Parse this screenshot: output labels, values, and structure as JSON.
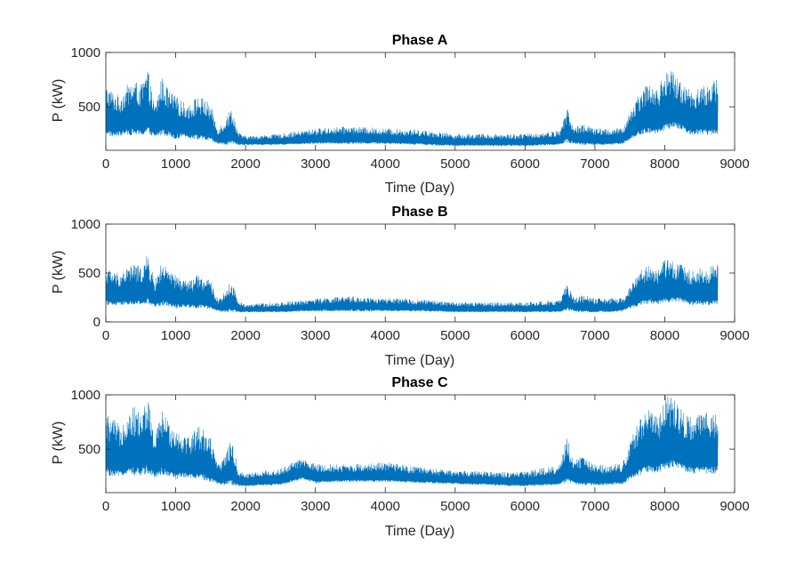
{
  "colors": {
    "series": "#0072BD",
    "axis": "#262626",
    "background": "#ffffff"
  },
  "chart_data": [
    {
      "type": "line",
      "title": "Phase A",
      "xlabel": "Time (Day)",
      "ylabel": "P (kW)",
      "xlim": [
        0,
        9000
      ],
      "ylim": [
        100,
        1000
      ],
      "xticks": [
        0,
        1000,
        2000,
        3000,
        4000,
        5000,
        6000,
        7000,
        8000,
        9000
      ],
      "yticks": [
        500,
        1000
      ],
      "grid": false,
      "series": [
        {
          "name": "Phase A",
          "x_range": [
            0,
            8760
          ],
          "envelope_x": [
            0,
            100,
            200,
            300,
            400,
            500,
            600,
            700,
            800,
            900,
            1000,
            1100,
            1200,
            1300,
            1400,
            1500,
            1600,
            1700,
            1800,
            1900,
            2000,
            2500,
            3000,
            3500,
            4000,
            4500,
            5000,
            5500,
            5800,
            6000,
            6500,
            6600,
            6700,
            6800,
            7000,
            7200,
            7400,
            7500,
            7600,
            7700,
            7800,
            7900,
            8000,
            8100,
            8200,
            8300,
            8400,
            8500,
            8600,
            8760
          ],
          "envelope_min": [
            250,
            220,
            230,
            240,
            240,
            230,
            250,
            220,
            240,
            230,
            200,
            220,
            210,
            200,
            190,
            180,
            160,
            150,
            150,
            150,
            150,
            150,
            160,
            160,
            160,
            150,
            140,
            140,
            140,
            140,
            150,
            170,
            160,
            150,
            150,
            150,
            160,
            200,
            220,
            250,
            260,
            250,
            280,
            300,
            300,
            260,
            240,
            250,
            240,
            250
          ],
          "envelope_max": [
            700,
            650,
            600,
            700,
            750,
            700,
            850,
            500,
            780,
            650,
            600,
            550,
            520,
            600,
            580,
            520,
            300,
            380,
            500,
            260,
            230,
            250,
            300,
            320,
            300,
            290,
            250,
            250,
            250,
            250,
            280,
            500,
            300,
            350,
            300,
            300,
            300,
            450,
            600,
            700,
            720,
            650,
            850,
            830,
            750,
            700,
            650,
            700,
            700,
            760
          ]
        }
      ]
    },
    {
      "type": "line",
      "title": "Phase B",
      "xlabel": "Time (Day)",
      "ylabel": "P (kW)",
      "xlim": [
        0,
        9000
      ],
      "ylim": [
        0,
        1000
      ],
      "xticks": [
        0,
        1000,
        2000,
        3000,
        4000,
        5000,
        6000,
        7000,
        8000,
        9000
      ],
      "yticks": [
        0,
        500,
        1000
      ],
      "grid": false,
      "series": [
        {
          "name": "Phase B",
          "x_range": [
            0,
            8760
          ],
          "envelope_x": [
            0,
            100,
            200,
            300,
            400,
            500,
            600,
            700,
            800,
            900,
            1000,
            1100,
            1200,
            1300,
            1400,
            1500,
            1600,
            1700,
            1800,
            1900,
            2000,
            2500,
            3000,
            3500,
            4000,
            4500,
            5000,
            5500,
            5800,
            6000,
            6500,
            6600,
            6700,
            6800,
            7000,
            7200,
            7400,
            7500,
            7600,
            7700,
            7800,
            7900,
            8000,
            8100,
            8200,
            8300,
            8400,
            8500,
            8600,
            8760
          ],
          "envelope_min": [
            180,
            160,
            170,
            170,
            170,
            170,
            180,
            150,
            170,
            160,
            140,
            150,
            150,
            140,
            140,
            130,
            110,
            100,
            100,
            100,
            100,
            100,
            110,
            110,
            110,
            110,
            100,
            100,
            100,
            100,
            100,
            120,
            110,
            100,
            100,
            100,
            110,
            140,
            160,
            180,
            190,
            180,
            200,
            210,
            210,
            190,
            170,
            180,
            170,
            180
          ],
          "envelope_max": [
            560,
            520,
            500,
            560,
            600,
            560,
            690,
            420,
            620,
            520,
            480,
            440,
            420,
            480,
            460,
            420,
            240,
            300,
            430,
            210,
            180,
            200,
            240,
            260,
            240,
            230,
            200,
            200,
            200,
            200,
            220,
            400,
            240,
            280,
            240,
            240,
            240,
            360,
            480,
            560,
            600,
            520,
            650,
            640,
            600,
            560,
            520,
            560,
            560,
            600
          ]
        }
      ]
    },
    {
      "type": "line",
      "title": "Phase C",
      "xlabel": "Time (Day)",
      "ylabel": "P (kW)",
      "xlim": [
        0,
        9000
      ],
      "ylim": [
        100,
        1000
      ],
      "xticks": [
        0,
        1000,
        2000,
        3000,
        4000,
        5000,
        6000,
        7000,
        8000,
        9000
      ],
      "yticks": [
        500,
        1000
      ],
      "grid": false,
      "series": [
        {
          "name": "Phase C",
          "x_range": [
            0,
            8760
          ],
          "envelope_x": [
            0,
            100,
            200,
            300,
            400,
            500,
            600,
            700,
            800,
            900,
            1000,
            1100,
            1200,
            1300,
            1400,
            1500,
            1600,
            1700,
            1800,
            1900,
            2000,
            2500,
            2800,
            3000,
            3500,
            4000,
            4500,
            5000,
            5500,
            5800,
            6000,
            6500,
            6600,
            6700,
            6800,
            7000,
            7200,
            7400,
            7500,
            7600,
            7700,
            7800,
            7900,
            8000,
            8100,
            8200,
            8300,
            8400,
            8500,
            8600,
            8760
          ],
          "envelope_min": [
            270,
            240,
            250,
            260,
            260,
            250,
            280,
            240,
            260,
            250,
            220,
            240,
            230,
            220,
            210,
            200,
            180,
            170,
            170,
            160,
            160,
            170,
            220,
            190,
            200,
            200,
            190,
            180,
            170,
            160,
            160,
            170,
            190,
            180,
            170,
            170,
            170,
            180,
            220,
            240,
            280,
            290,
            280,
            310,
            330,
            330,
            290,
            270,
            280,
            270,
            280
          ],
          "envelope_max": [
            830,
            780,
            720,
            850,
            900,
            840,
            990,
            600,
            870,
            760,
            700,
            650,
            620,
            720,
            700,
            620,
            350,
            450,
            600,
            300,
            280,
            320,
            420,
            360,
            360,
            380,
            330,
            300,
            300,
            280,
            300,
            350,
            640,
            380,
            450,
            360,
            360,
            380,
            560,
            720,
            850,
            920,
            800,
            1000,
            980,
            900,
            840,
            780,
            840,
            840,
            860
          ]
        }
      ]
    }
  ]
}
